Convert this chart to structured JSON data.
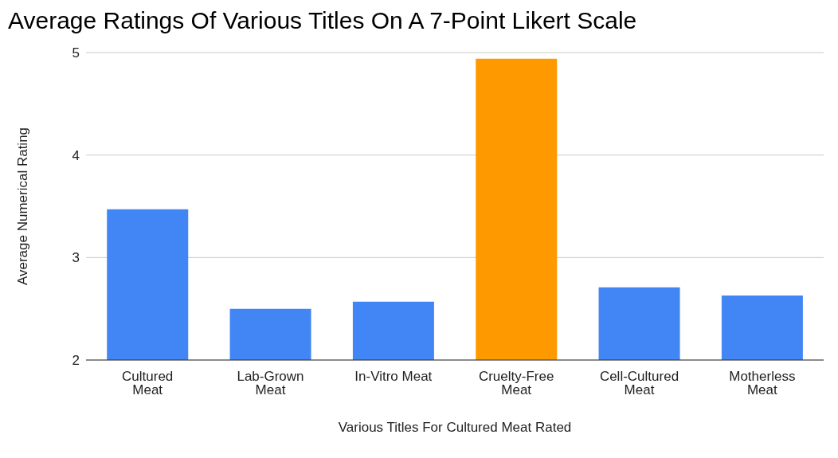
{
  "chart_data": {
    "type": "bar",
    "title": "Average Ratings Of Various Titles On A 7-Point Likert Scale",
    "xlabel": "Various Titles For Cultured Meat Rated",
    "ylabel": "Average Numerical Rating",
    "categories": [
      "Cultured Meat",
      "Lab-Grown Meat",
      "In-Vitro Meat",
      "Cruelty-Free Meat",
      "Cell-Cultured Meat",
      "Motherless Meat"
    ],
    "values": [
      3.47,
      2.5,
      2.57,
      4.94,
      2.71,
      2.63
    ],
    "colors": [
      "#4285f4",
      "#4285f4",
      "#4285f4",
      "#ff9900",
      "#4285f4",
      "#4285f4"
    ],
    "ylim": [
      2,
      5
    ],
    "yticks": [
      2,
      3,
      4,
      5
    ],
    "grid": "y"
  }
}
